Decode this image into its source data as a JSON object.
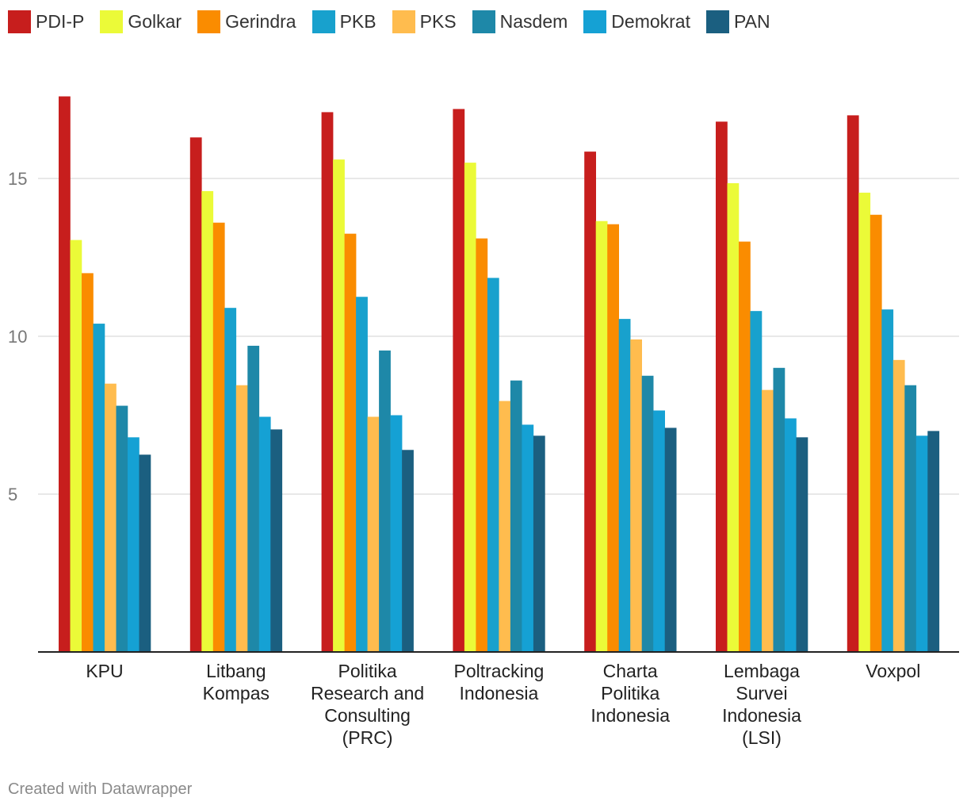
{
  "chart_data": {
    "type": "bar",
    "title": "",
    "xlabel": "",
    "ylabel": "",
    "ylim": [
      0,
      18
    ],
    "yticks": [
      5,
      10,
      15
    ],
    "grid": true,
    "legend_position": "top-left",
    "categories": [
      "KPU",
      "Litbang Kompas",
      "Politika Research and Consulting (PRC)",
      "Poltracking Indonesia",
      "Charta Politika Indonesia",
      "Lembaga Survei Indonesia (LSI)",
      "Voxpol"
    ],
    "category_lines": [
      [
        "KPU"
      ],
      [
        "Litbang",
        "Kompas"
      ],
      [
        "Politika",
        "Research and",
        "Consulting",
        "(PRC)"
      ],
      [
        "Poltracking",
        "Indonesia"
      ],
      [
        "Charta",
        "Politika",
        "Indonesia"
      ],
      [
        "Lembaga",
        "Survei",
        "Indonesia",
        "(LSI)"
      ],
      [
        "Voxpol"
      ]
    ],
    "series": [
      {
        "name": "PDI-P",
        "color": "#c71e1d",
        "values": [
          17.6,
          16.3,
          17.1,
          17.2,
          15.85,
          16.8,
          17.0
        ]
      },
      {
        "name": "Golkar",
        "color": "#ebfa38",
        "values": [
          13.05,
          14.6,
          15.6,
          15.5,
          13.65,
          14.85,
          14.55
        ]
      },
      {
        "name": "Gerindra",
        "color": "#fa8c00",
        "values": [
          12.0,
          13.6,
          13.25,
          13.1,
          13.55,
          13.0,
          13.85
        ]
      },
      {
        "name": "PKB",
        "color": "#18a1cd",
        "values": [
          10.4,
          10.9,
          11.25,
          11.85,
          10.55,
          10.8,
          10.85
        ]
      },
      {
        "name": "PKS",
        "color": "#ffbc4e",
        "values": [
          8.5,
          8.45,
          7.45,
          7.95,
          9.9,
          8.3,
          9.25
        ]
      },
      {
        "name": "Nasdem",
        "color": "#1e88a8",
        "values": [
          7.8,
          9.7,
          9.55,
          8.6,
          8.75,
          9.0,
          8.45
        ]
      },
      {
        "name": "Demokrat",
        "color": "#15a1d4",
        "values": [
          6.8,
          7.45,
          7.5,
          7.2,
          7.65,
          7.4,
          6.85
        ]
      },
      {
        "name": "PAN",
        "color": "#1b5f80",
        "values": [
          6.25,
          7.05,
          6.4,
          6.85,
          7.1,
          6.8,
          7.0
        ]
      }
    ]
  },
  "footer": "Created with Datawrapper"
}
